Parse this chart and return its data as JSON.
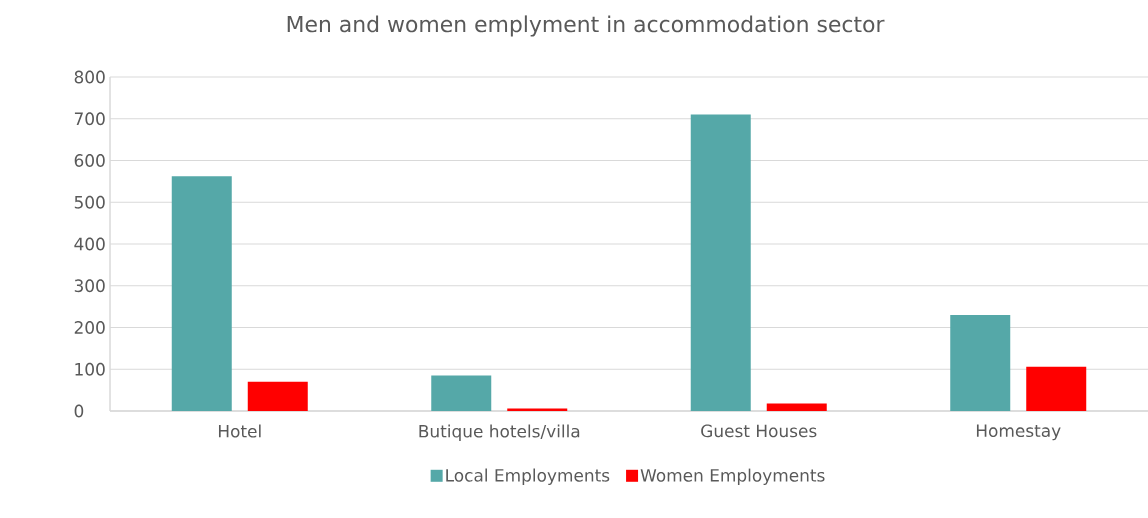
{
  "chart_data": {
    "type": "bar",
    "title": "Men and women emplyment in accommodation sector",
    "categories": [
      "Hotel",
      "Butique hotels/villa",
      "Guest Houses",
      "Homestay"
    ],
    "series": [
      {
        "name": "Local Employments",
        "color": "#55a8a8",
        "values": [
          562,
          85,
          710,
          230
        ]
      },
      {
        "name": "Women Employments",
        "color": "#ff0000",
        "values": [
          70,
          6,
          18,
          106
        ]
      }
    ],
    "ylim": [
      0,
      800
    ],
    "yticks": [
      0,
      100,
      200,
      300,
      400,
      500,
      600,
      700,
      800
    ],
    "grid": "y",
    "legend": "bottom"
  }
}
